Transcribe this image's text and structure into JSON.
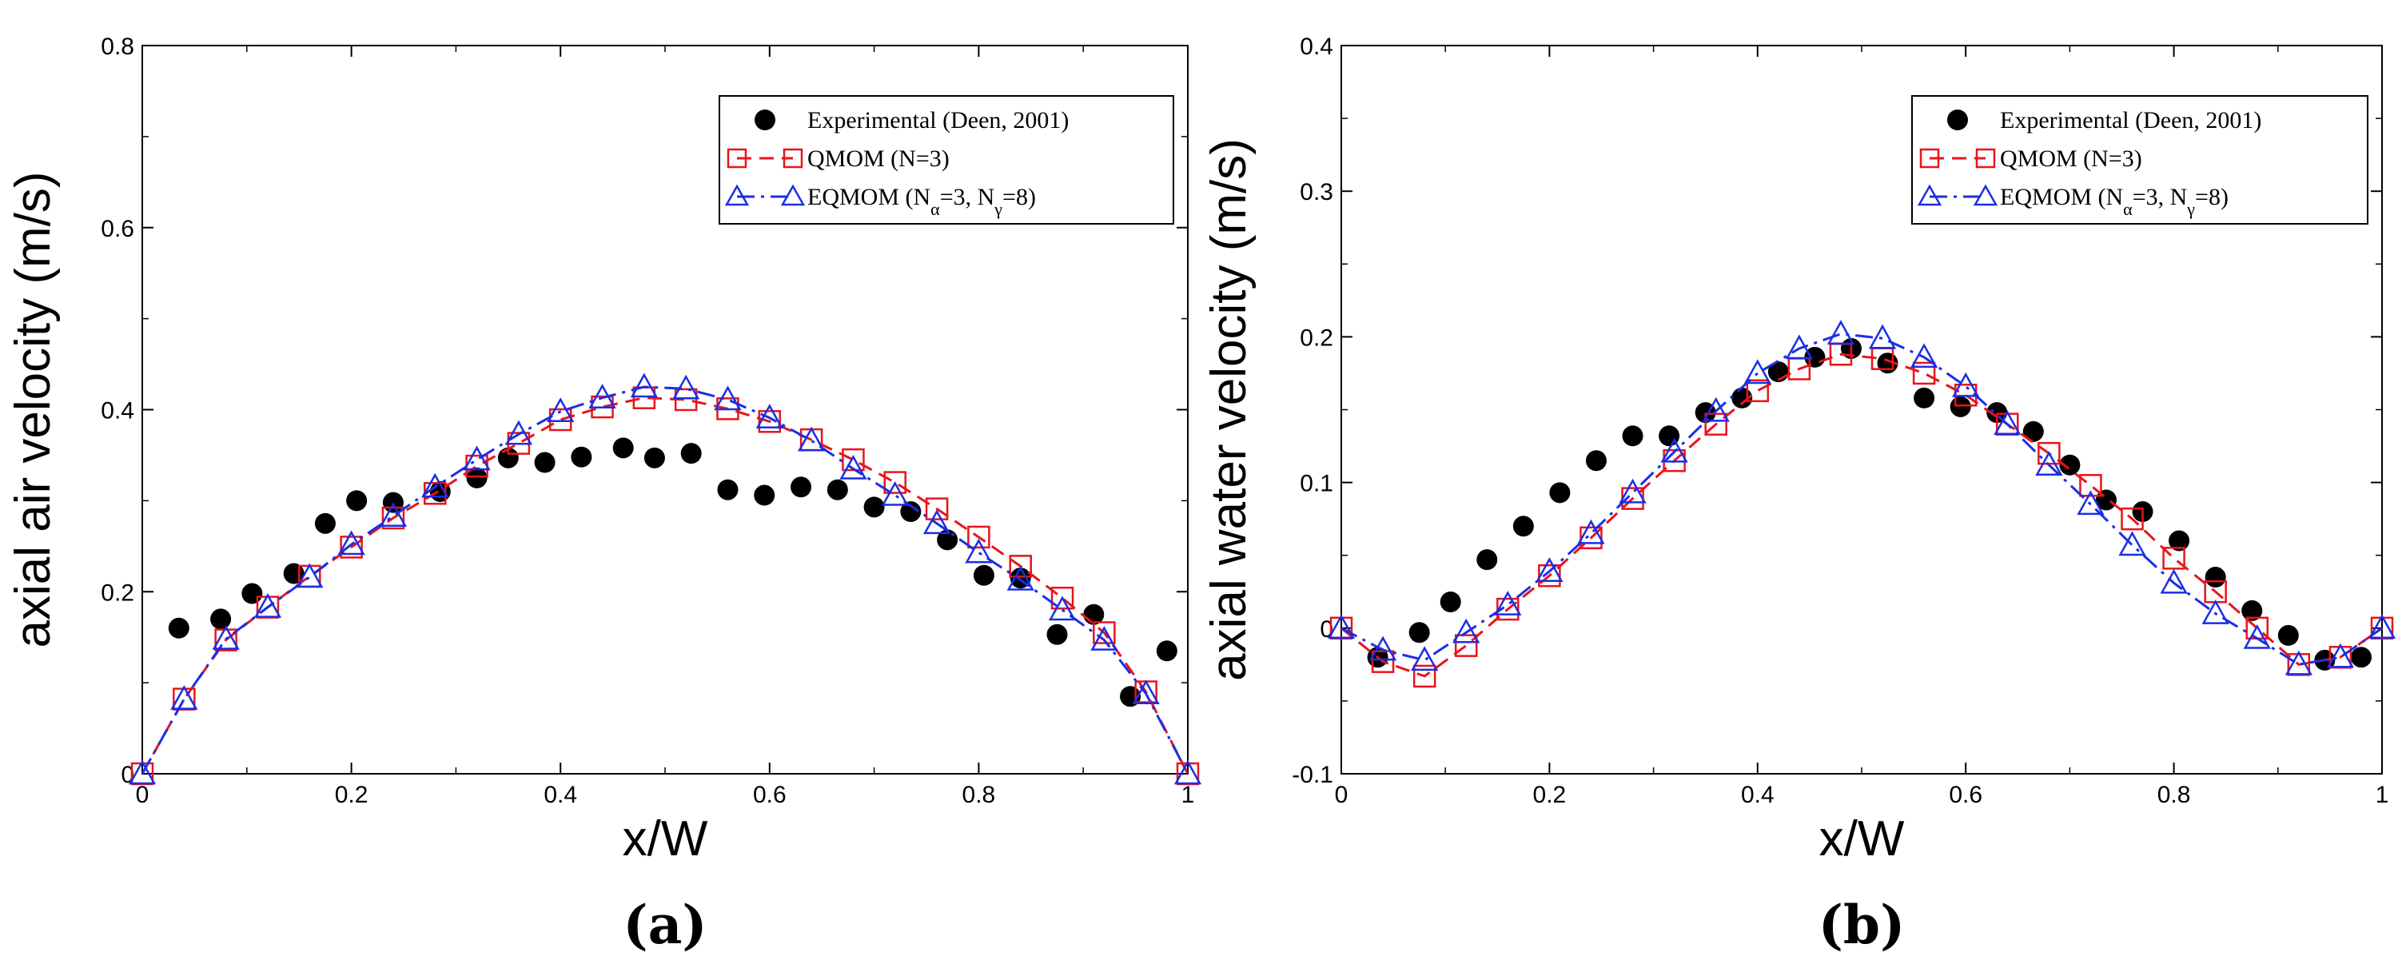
{
  "chart_data": [
    {
      "type": "line",
      "panel_label": "(a)",
      "xlabel": "x/W",
      "ylabel": "axial air velocity (m/s)",
      "xlim": [
        0,
        1
      ],
      "ylim": [
        0,
        0.8
      ],
      "xticks": [
        0,
        0.2,
        0.4,
        0.6,
        0.8,
        1
      ],
      "xtick_labels": [
        "0",
        "0.2",
        "0.4",
        "0.6",
        "0.8",
        "1"
      ],
      "yticks": [
        0,
        0.2,
        0.4,
        0.6,
        0.8
      ],
      "ytick_labels": [
        "0",
        "0.2",
        "0.4",
        "0.6",
        "0.8"
      ],
      "legend_position": "top-right",
      "series": [
        {
          "name": "Experimental (Deen, 2001)",
          "legend_text": "Experimental (Deen, 2001)",
          "style": "marker",
          "marker": "filled-circle",
          "color": "#000000",
          "x": [
            0.035,
            0.075,
            0.105,
            0.145,
            0.175,
            0.205,
            0.24,
            0.285,
            0.32,
            0.35,
            0.385,
            0.42,
            0.46,
            0.49,
            0.525,
            0.56,
            0.595,
            0.63,
            0.665,
            0.7,
            0.735,
            0.77,
            0.805,
            0.84,
            0.875,
            0.91,
            0.945,
            0.98
          ],
          "y": [
            0.16,
            0.17,
            0.198,
            0.22,
            0.275,
            0.3,
            0.298,
            0.31,
            0.325,
            0.347,
            0.342,
            0.348,
            0.358,
            0.347,
            0.352,
            0.312,
            0.306,
            0.315,
            0.312,
            0.293,
            0.288,
            0.257,
            0.218,
            0.215,
            0.153,
            0.175,
            0.085,
            0.135
          ]
        },
        {
          "name": "QMOM (N=3)",
          "legend_text": "QMOM (N=3)",
          "style": "dashed-line-marker",
          "marker": "open-square",
          "color": "#e8141b",
          "x": [
            0,
            0.04,
            0.08,
            0.12,
            0.16,
            0.2,
            0.24,
            0.28,
            0.32,
            0.36,
            0.4,
            0.44,
            0.48,
            0.52,
            0.56,
            0.6,
            0.64,
            0.68,
            0.72,
            0.76,
            0.8,
            0.84,
            0.88,
            0.92,
            0.96,
            1.0
          ],
          "y": [
            0,
            0.082,
            0.147,
            0.183,
            0.217,
            0.249,
            0.281,
            0.308,
            0.338,
            0.363,
            0.389,
            0.403,
            0.413,
            0.411,
            0.401,
            0.387,
            0.367,
            0.345,
            0.32,
            0.291,
            0.26,
            0.228,
            0.193,
            0.155,
            0.09,
            0
          ]
        },
        {
          "name": "EQMOM (Nα=3, Nγ=8)",
          "legend_text": "EQMOM (N",
          "legend_sub_alpha": "α",
          "legend_mid": "=3, N",
          "legend_sub_gamma": "γ",
          "legend_end": "=8)",
          "style": "dashdot-line-marker",
          "marker": "open-triangle",
          "color": "#1a2ee6",
          "x": [
            0,
            0.04,
            0.08,
            0.12,
            0.16,
            0.2,
            0.24,
            0.28,
            0.32,
            0.36,
            0.4,
            0.44,
            0.48,
            0.52,
            0.56,
            0.6,
            0.64,
            0.68,
            0.72,
            0.76,
            0.8,
            0.84,
            0.88,
            0.92,
            0.96,
            1.0
          ],
          "y": [
            0,
            0.082,
            0.148,
            0.183,
            0.216,
            0.252,
            0.283,
            0.315,
            0.345,
            0.373,
            0.398,
            0.413,
            0.425,
            0.423,
            0.411,
            0.391,
            0.366,
            0.335,
            0.306,
            0.275,
            0.243,
            0.213,
            0.18,
            0.147,
            0.088,
            0
          ]
        }
      ]
    },
    {
      "type": "line",
      "panel_label": "(b)",
      "xlabel": "x/W",
      "ylabel": "axial water velocity (m/s)",
      "xlim": [
        0,
        1
      ],
      "ylim": [
        -0.1,
        0.4
      ],
      "xticks": [
        0,
        0.2,
        0.4,
        0.6,
        0.8,
        1
      ],
      "xtick_labels": [
        "0",
        "0.2",
        "0.4",
        "0.6",
        "0.8",
        "1"
      ],
      "yticks": [
        -0.1,
        0,
        0.1,
        0.2,
        0.3,
        0.4
      ],
      "ytick_labels": [
        "-0.1",
        "0",
        "0.1",
        "0.2",
        "0.3",
        "0.4"
      ],
      "legend_position": "top-right",
      "series": [
        {
          "name": "Experimental (Deen, 2001)",
          "legend_text": "Experimental (Deen, 2001)",
          "style": "marker",
          "marker": "filled-circle",
          "color": "#000000",
          "x": [
            0.035,
            0.075,
            0.105,
            0.14,
            0.175,
            0.21,
            0.245,
            0.28,
            0.315,
            0.35,
            0.385,
            0.42,
            0.455,
            0.49,
            0.525,
            0.56,
            0.595,
            0.63,
            0.665,
            0.7,
            0.735,
            0.77,
            0.805,
            0.84,
            0.875,
            0.91,
            0.945,
            0.98
          ],
          "y": [
            -0.02,
            -0.003,
            0.018,
            0.047,
            0.07,
            0.093,
            0.115,
            0.132,
            0.132,
            0.148,
            0.158,
            0.176,
            0.186,
            0.192,
            0.182,
            0.158,
            0.152,
            0.148,
            0.135,
            0.112,
            0.088,
            0.08,
            0.06,
            0.035,
            0.012,
            -0.005,
            -0.022,
            -0.02
          ]
        },
        {
          "name": "QMOM (N=3)",
          "legend_text": "QMOM (N=3)",
          "style": "dashed-line-marker",
          "marker": "open-square",
          "color": "#e8141b",
          "x": [
            0,
            0.04,
            0.08,
            0.12,
            0.16,
            0.2,
            0.24,
            0.28,
            0.32,
            0.36,
            0.4,
            0.44,
            0.48,
            0.52,
            0.56,
            0.6,
            0.64,
            0.68,
            0.72,
            0.76,
            0.8,
            0.84,
            0.88,
            0.92,
            0.96,
            1.0
          ],
          "y": [
            0,
            -0.023,
            -0.033,
            -0.012,
            0.013,
            0.036,
            0.062,
            0.089,
            0.115,
            0.14,
            0.163,
            0.178,
            0.188,
            0.185,
            0.175,
            0.16,
            0.14,
            0.12,
            0.098,
            0.075,
            0.048,
            0.025,
            0,
            -0.025,
            -0.02,
            0
          ]
        },
        {
          "name": "EQMOM (Nα=3, Nγ=8)",
          "legend_text": "EQMOM (N",
          "legend_sub_alpha": "α",
          "legend_mid": "=3, N",
          "legend_sub_gamma": "γ",
          "legend_end": "=8)",
          "style": "dashdot-line-marker",
          "marker": "open-triangle",
          "color": "#1a2ee6",
          "x": [
            0,
            0.04,
            0.08,
            0.12,
            0.16,
            0.2,
            0.24,
            0.28,
            0.32,
            0.36,
            0.4,
            0.44,
            0.48,
            0.52,
            0.56,
            0.6,
            0.64,
            0.68,
            0.72,
            0.76,
            0.8,
            0.84,
            0.88,
            0.92,
            0.96,
            1.0
          ],
          "y": [
            0,
            -0.015,
            -0.022,
            -0.003,
            0.016,
            0.039,
            0.065,
            0.093,
            0.121,
            0.149,
            0.175,
            0.192,
            0.202,
            0.199,
            0.186,
            0.166,
            0.14,
            0.112,
            0.085,
            0.057,
            0.031,
            0.01,
            -0.007,
            -0.025,
            -0.02,
            0
          ]
        }
      ]
    }
  ]
}
